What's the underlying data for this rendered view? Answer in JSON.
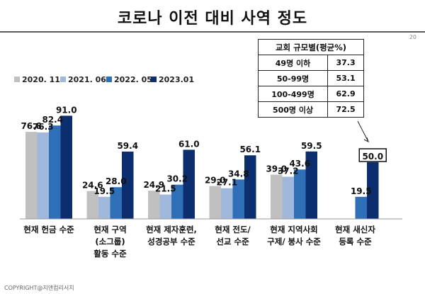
{
  "page": {
    "title": "코로나 이전 대비 사역 정도",
    "page_number": "20",
    "copyright": "COPYRIGHT@지앤컴리서치"
  },
  "inset_table": {
    "header": "교회 규모별(평균%)",
    "rows": [
      {
        "label": "49명 이하",
        "value": "37.3"
      },
      {
        "label": "50-99명",
        "value": "53.1"
      },
      {
        "label": "100-499명",
        "value": "62.9"
      },
      {
        "label": "500명 이상",
        "value": "72.5"
      }
    ]
  },
  "chart_data": {
    "type": "bar",
    "title": "코로나 이전 대비 사역 정도",
    "categories": [
      [
        "현재 헌금 수준"
      ],
      [
        "현재 구역",
        "(소그룹)",
        "활동 수준"
      ],
      [
        "현재 제자훈련,",
        "성경공부 수준"
      ],
      [
        "현재 전도/",
        "선교 수준"
      ],
      [
        "현재 지역사회",
        "구제/ 봉사 수준"
      ],
      [
        "현재 새신자",
        "등록 수준"
      ]
    ],
    "series": [
      {
        "name": "2020. 11",
        "color": "#c0c0c0",
        "values": [
          76.8,
          24.6,
          24.9,
          29.0,
          39.0,
          null
        ]
      },
      {
        "name": "2021. 06",
        "color": "#9fb8dc",
        "values": [
          76.3,
          19.5,
          21.5,
          27.1,
          37.2,
          null
        ]
      },
      {
        "name": "2022. 05",
        "color": "#2e6fb8",
        "values": [
          82.4,
          28.0,
          30.2,
          34.8,
          43.6,
          19.5
        ]
      },
      {
        "name": "2023.01",
        "color": "#0c2d6e",
        "values": [
          91.0,
          59.4,
          61.0,
          56.1,
          59.5,
          50.0
        ]
      }
    ],
    "highlighted_label": {
      "category_index": 5,
      "series_index": 3,
      "text": "50.0"
    },
    "ylim": [
      0,
      100
    ],
    "grid": false,
    "legend_position": "top-left"
  }
}
